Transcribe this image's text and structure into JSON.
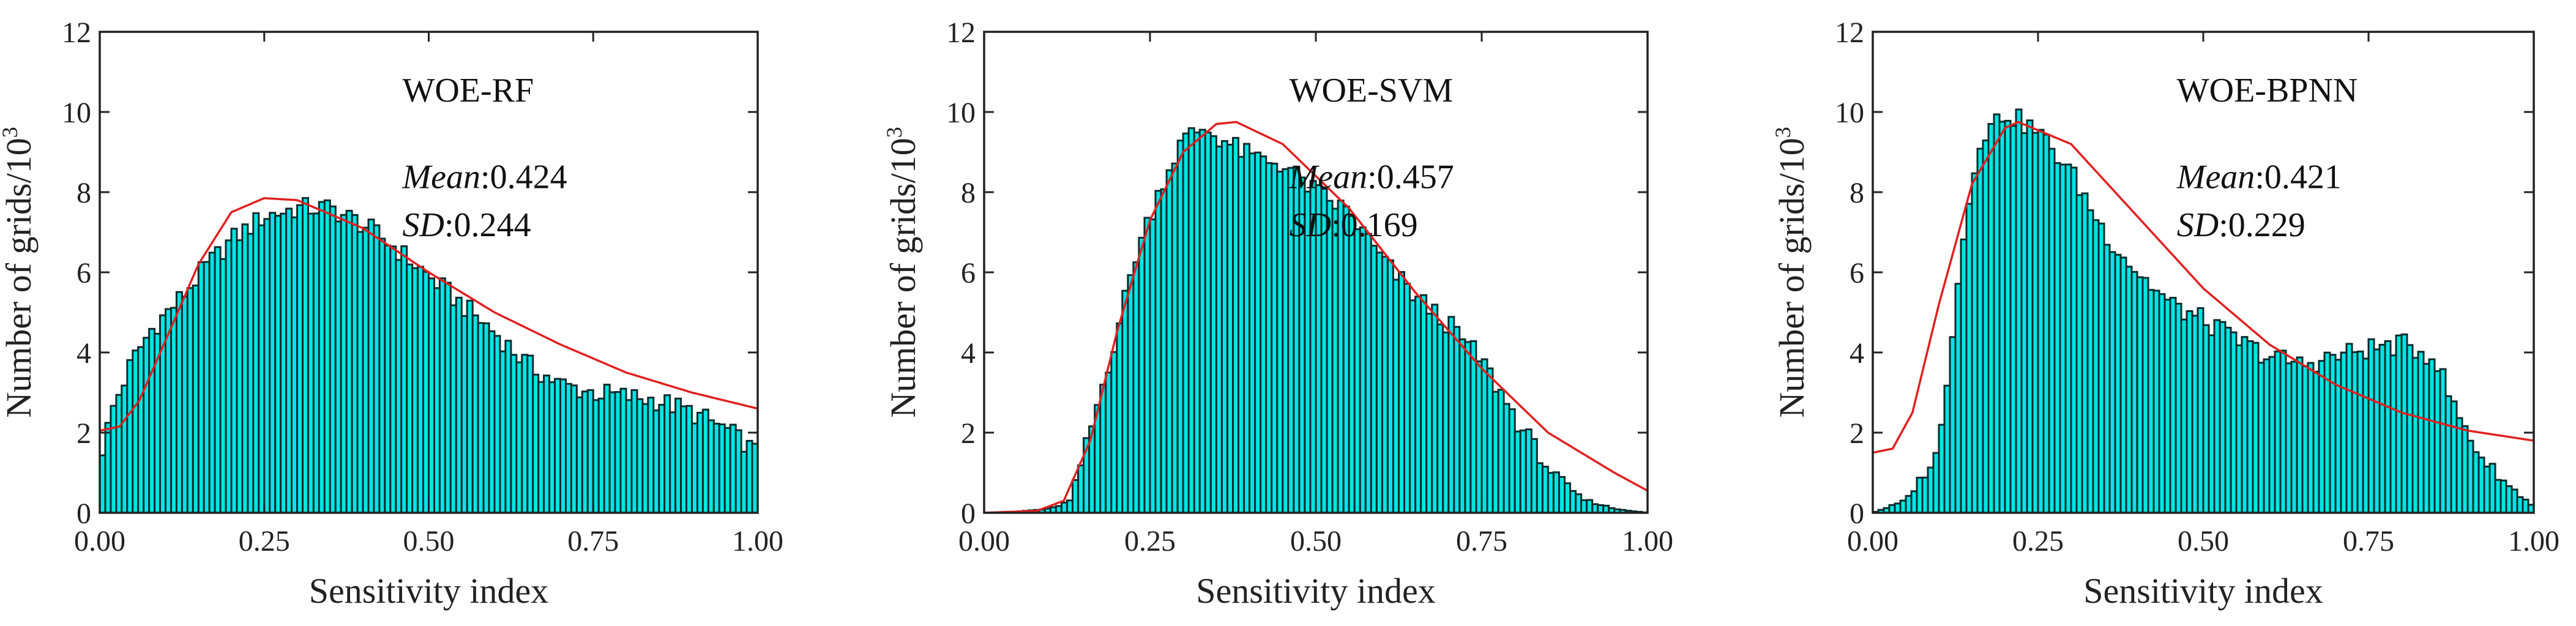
{
  "chart_data": [
    {
      "type": "bar",
      "title": "WOE-RF",
      "xlabel": "Sensitivity index",
      "ylabel": "Number of grids/10",
      "ylabel_sup": "3",
      "xlim": [
        0,
        1
      ],
      "ylim": [
        0,
        12
      ],
      "xticks": [
        "0.00",
        "0.25",
        "0.50",
        "0.75",
        "1.00"
      ],
      "yticks": [
        "0",
        "2",
        "4",
        "6",
        "8",
        "10",
        "12"
      ],
      "mean_label": "Mean",
      "mean_value": ":0.424",
      "sd_label": "SD",
      "sd_value": ":0.244",
      "hist_anchors": [
        [
          0.0,
          1.3
        ],
        [
          0.02,
          2.6
        ],
        [
          0.05,
          3.8
        ],
        [
          0.08,
          4.6
        ],
        [
          0.12,
          5.3
        ],
        [
          0.16,
          6.1
        ],
        [
          0.2,
          6.8
        ],
        [
          0.25,
          7.4
        ],
        [
          0.3,
          7.6
        ],
        [
          0.35,
          7.6
        ],
        [
          0.4,
          7.2
        ],
        [
          0.45,
          6.6
        ],
        [
          0.5,
          5.9
        ],
        [
          0.55,
          5.2
        ],
        [
          0.6,
          4.5
        ],
        [
          0.65,
          3.7
        ],
        [
          0.7,
          3.2
        ],
        [
          0.75,
          3.0
        ],
        [
          0.8,
          2.9
        ],
        [
          0.85,
          2.8
        ],
        [
          0.9,
          2.5
        ],
        [
          0.95,
          2.1
        ],
        [
          1.0,
          1.5
        ]
      ],
      "fit_anchors": [
        [
          0.0,
          2.05
        ],
        [
          0.03,
          2.15
        ],
        [
          0.06,
          2.8
        ],
        [
          0.1,
          4.3
        ],
        [
          0.15,
          6.2
        ],
        [
          0.2,
          7.5
        ],
        [
          0.25,
          7.85
        ],
        [
          0.3,
          7.8
        ],
        [
          0.4,
          7.1
        ],
        [
          0.5,
          6.0
        ],
        [
          0.6,
          5.0
        ],
        [
          0.7,
          4.2
        ],
        [
          0.8,
          3.5
        ],
        [
          0.9,
          3.0
        ],
        [
          1.0,
          2.6
        ]
      ]
    },
    {
      "type": "bar",
      "title": "WOE-SVM",
      "xlabel": "Sensitivity index",
      "ylabel": "Number of grids/10",
      "ylabel_sup": "3",
      "xlim": [
        0,
        1
      ],
      "ylim": [
        0,
        12
      ],
      "xticks": [
        "0.00",
        "0.25",
        "0.50",
        "0.75",
        "1.00"
      ],
      "yticks": [
        "0",
        "2",
        "4",
        "6",
        "8",
        "10",
        "12"
      ],
      "mean_label": "Mean",
      "mean_value": ":0.457",
      "sd_label": "SD",
      "sd_value": ":0.169",
      "hist_anchors": [
        [
          0.0,
          0.0
        ],
        [
          0.05,
          0.03
        ],
        [
          0.1,
          0.1
        ],
        [
          0.13,
          0.3
        ],
        [
          0.16,
          2.0
        ],
        [
          0.2,
          4.5
        ],
        [
          0.23,
          6.5
        ],
        [
          0.27,
          8.3
        ],
        [
          0.3,
          9.3
        ],
        [
          0.33,
          9.6
        ],
        [
          0.36,
          9.3
        ],
        [
          0.4,
          8.9
        ],
        [
          0.45,
          8.7
        ],
        [
          0.5,
          8.0
        ],
        [
          0.55,
          7.5
        ],
        [
          0.6,
          6.3
        ],
        [
          0.65,
          5.4
        ],
        [
          0.7,
          4.7
        ],
        [
          0.75,
          3.8
        ],
        [
          0.8,
          2.4
        ],
        [
          0.85,
          1.1
        ],
        [
          0.9,
          0.35
        ],
        [
          0.95,
          0.1
        ],
        [
          1.0,
          0.0
        ]
      ],
      "fit_anchors": [
        [
          0.0,
          0.0
        ],
        [
          0.08,
          0.05
        ],
        [
          0.12,
          0.3
        ],
        [
          0.16,
          1.8
        ],
        [
          0.2,
          4.5
        ],
        [
          0.25,
          7.3
        ],
        [
          0.3,
          9.0
        ],
        [
          0.35,
          9.7
        ],
        [
          0.38,
          9.75
        ],
        [
          0.45,
          9.2
        ],
        [
          0.55,
          7.6
        ],
        [
          0.65,
          5.5
        ],
        [
          0.75,
          3.6
        ],
        [
          0.85,
          2.0
        ],
        [
          0.95,
          1.0
        ],
        [
          1.0,
          0.55
        ]
      ]
    },
    {
      "type": "bar",
      "title": "WOE-BPNN",
      "xlabel": "Sensitivity index",
      "ylabel": "Number of grids/10",
      "ylabel_sup": "3",
      "xlim": [
        0,
        1
      ],
      "ylim": [
        0,
        12
      ],
      "xticks": [
        "0.00",
        "0.25",
        "0.50",
        "0.75",
        "1.00"
      ],
      "yticks": [
        "0",
        "2",
        "4",
        "6",
        "8",
        "10",
        "12"
      ],
      "mean_label": "Mean",
      "mean_value": ":0.421",
      "sd_label": "SD",
      "sd_value": ":0.229",
      "hist_anchors": [
        [
          0.0,
          0.0
        ],
        [
          0.05,
          0.3
        ],
        [
          0.1,
          1.5
        ],
        [
          0.13,
          6.0
        ],
        [
          0.16,
          9.3
        ],
        [
          0.2,
          10.0
        ],
        [
          0.25,
          9.5
        ],
        [
          0.3,
          8.5
        ],
        [
          0.35,
          7.0
        ],
        [
          0.4,
          6.0
        ],
        [
          0.45,
          5.2
        ],
        [
          0.5,
          4.8
        ],
        [
          0.55,
          4.3
        ],
        [
          0.6,
          3.9
        ],
        [
          0.65,
          3.7
        ],
        [
          0.7,
          3.9
        ],
        [
          0.75,
          4.1
        ],
        [
          0.8,
          4.2
        ],
        [
          0.85,
          3.9
        ],
        [
          0.88,
          2.6
        ],
        [
          0.92,
          1.4
        ],
        [
          0.96,
          0.7
        ],
        [
          1.0,
          0.15
        ]
      ],
      "fit_anchors": [
        [
          0.0,
          1.5
        ],
        [
          0.03,
          1.6
        ],
        [
          0.06,
          2.5
        ],
        [
          0.1,
          5.2
        ],
        [
          0.15,
          8.2
        ],
        [
          0.2,
          9.6
        ],
        [
          0.22,
          9.75
        ],
        [
          0.3,
          9.2
        ],
        [
          0.4,
          7.4
        ],
        [
          0.5,
          5.6
        ],
        [
          0.6,
          4.2
        ],
        [
          0.7,
          3.2
        ],
        [
          0.8,
          2.5
        ],
        [
          0.9,
          2.05
        ],
        [
          1.0,
          1.8
        ]
      ]
    }
  ]
}
